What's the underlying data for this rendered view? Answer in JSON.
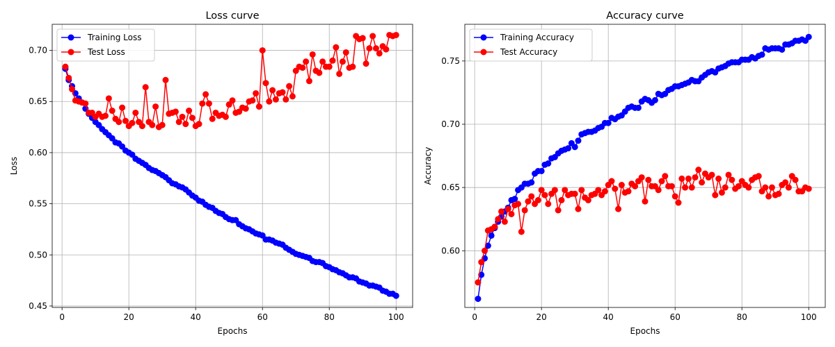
{
  "chart_data": [
    {
      "type": "line",
      "title": "Loss curve",
      "xlabel": "Epochs",
      "ylabel": "Loss",
      "xlim": [
        -2.95,
        104.95
      ],
      "ylim": [
        0.4486,
        0.7255
      ],
      "xticks": [
        0,
        20,
        40,
        60,
        80,
        100
      ],
      "xtick_labels": [
        "0",
        "20",
        "40",
        "60",
        "80",
        "100"
      ],
      "yticks": [
        0.45,
        0.5,
        0.55,
        0.6,
        0.65,
        0.7
      ],
      "ytick_labels": [
        "0.45",
        "0.50",
        "0.55",
        "0.60",
        "0.65",
        "0.70"
      ],
      "grid": true,
      "legend_position": "upper-left",
      "x": [
        1,
        2,
        3,
        4,
        5,
        6,
        7,
        8,
        9,
        10,
        11,
        12,
        13,
        14,
        15,
        16,
        17,
        18,
        19,
        20,
        21,
        22,
        23,
        24,
        25,
        26,
        27,
        28,
        29,
        30,
        31,
        32,
        33,
        34,
        35,
        36,
        37,
        38,
        39,
        40,
        41,
        42,
        43,
        44,
        45,
        46,
        47,
        48,
        49,
        50,
        51,
        52,
        53,
        54,
        55,
        56,
        57,
        58,
        59,
        60,
        61,
        62,
        63,
        64,
        65,
        66,
        67,
        68,
        69,
        70,
        71,
        72,
        73,
        74,
        75,
        76,
        77,
        78,
        79,
        80,
        81,
        82,
        83,
        84,
        85,
        86,
        87,
        88,
        89,
        90,
        91,
        92,
        93,
        94,
        95,
        96,
        97,
        98,
        99,
        100
      ],
      "series": [
        {
          "name": "Training Loss",
          "color": "#0000ff",
          "values": [
            0.682,
            0.671,
            0.665,
            0.658,
            0.653,
            0.649,
            0.643,
            0.638,
            0.634,
            0.63,
            0.627,
            0.623,
            0.62,
            0.617,
            0.614,
            0.61,
            0.609,
            0.606,
            0.602,
            0.6,
            0.598,
            0.594,
            0.592,
            0.59,
            0.588,
            0.585,
            0.583,
            0.582,
            0.58,
            0.578,
            0.576,
            0.573,
            0.57,
            0.569,
            0.567,
            0.566,
            0.564,
            0.561,
            0.558,
            0.556,
            0.553,
            0.552,
            0.549,
            0.547,
            0.546,
            0.543,
            0.541,
            0.54,
            0.537,
            0.535,
            0.534,
            0.534,
            0.53,
            0.528,
            0.526,
            0.525,
            0.523,
            0.521,
            0.52,
            0.519,
            0.515,
            0.515,
            0.514,
            0.512,
            0.511,
            0.51,
            0.507,
            0.505,
            0.503,
            0.501,
            0.5,
            0.499,
            0.498,
            0.497,
            0.494,
            0.493,
            0.493,
            0.492,
            0.489,
            0.488,
            0.486,
            0.485,
            0.483,
            0.482,
            0.48,
            0.478,
            0.478,
            0.477,
            0.474,
            0.473,
            0.472,
            0.47,
            0.47,
            0.469,
            0.468,
            0.465,
            0.464,
            0.462,
            0.462,
            0.46
          ]
        },
        {
          "name": "Test Loss",
          "color": "#ff0000",
          "values": [
            0.684,
            0.673,
            0.662,
            0.651,
            0.65,
            0.649,
            0.648,
            0.639,
            0.639,
            0.635,
            0.638,
            0.635,
            0.636,
            0.653,
            0.641,
            0.633,
            0.63,
            0.644,
            0.631,
            0.626,
            0.629,
            0.639,
            0.63,
            0.626,
            0.664,
            0.63,
            0.627,
            0.645,
            0.625,
            0.627,
            0.671,
            0.638,
            0.639,
            0.64,
            0.63,
            0.635,
            0.628,
            0.641,
            0.634,
            0.626,
            0.628,
            0.648,
            0.657,
            0.648,
            0.633,
            0.639,
            0.636,
            0.637,
            0.635,
            0.647,
            0.651,
            0.639,
            0.64,
            0.644,
            0.643,
            0.65,
            0.651,
            0.658,
            0.645,
            0.7,
            0.668,
            0.65,
            0.661,
            0.652,
            0.658,
            0.659,
            0.652,
            0.665,
            0.655,
            0.68,
            0.684,
            0.683,
            0.689,
            0.67,
            0.696,
            0.68,
            0.678,
            0.689,
            0.684,
            0.684,
            0.69,
            0.703,
            0.677,
            0.689,
            0.698,
            0.683,
            0.684,
            0.714,
            0.711,
            0.712,
            0.687,
            0.702,
            0.714,
            0.702,
            0.697,
            0.704,
            0.701,
            0.715,
            0.714,
            0.715
          ]
        }
      ]
    },
    {
      "type": "line",
      "title": "Accuracy curve",
      "xlabel": "Epochs",
      "ylabel": "Accuracy",
      "xlim": [
        -2.95,
        104.95
      ],
      "ylim": [
        0.5552,
        0.779
      ],
      "xticks": [
        0,
        20,
        40,
        60,
        80,
        100
      ],
      "xtick_labels": [
        "0",
        "20",
        "40",
        "60",
        "80",
        "100"
      ],
      "yticks": [
        0.6,
        0.65,
        0.7,
        0.75
      ],
      "ytick_labels": [
        "0.60",
        "0.65",
        "0.70",
        "0.75"
      ],
      "grid": true,
      "legend_position": "upper-left",
      "x": [
        1,
        2,
        3,
        4,
        5,
        6,
        7,
        8,
        9,
        10,
        11,
        12,
        13,
        14,
        15,
        16,
        17,
        18,
        19,
        20,
        21,
        22,
        23,
        24,
        25,
        26,
        27,
        28,
        29,
        30,
        31,
        32,
        33,
        34,
        35,
        36,
        37,
        38,
        39,
        40,
        41,
        42,
        43,
        44,
        45,
        46,
        47,
        48,
        49,
        50,
        51,
        52,
        53,
        54,
        55,
        56,
        57,
        58,
        59,
        60,
        61,
        62,
        63,
        64,
        65,
        66,
        67,
        68,
        69,
        70,
        71,
        72,
        73,
        74,
        75,
        76,
        77,
        78,
        79,
        80,
        81,
        82,
        83,
        84,
        85,
        86,
        87,
        88,
        89,
        90,
        91,
        92,
        93,
        94,
        95,
        96,
        97,
        98,
        99,
        100
      ],
      "series": [
        {
          "name": "Training Accuracy",
          "color": "#0000ff",
          "values": [
            0.562,
            0.581,
            0.594,
            0.604,
            0.612,
            0.618,
            0.623,
            0.627,
            0.631,
            0.634,
            0.64,
            0.641,
            0.648,
            0.65,
            0.653,
            0.653,
            0.654,
            0.661,
            0.663,
            0.663,
            0.668,
            0.669,
            0.673,
            0.674,
            0.677,
            0.679,
            0.68,
            0.681,
            0.685,
            0.682,
            0.687,
            0.692,
            0.693,
            0.694,
            0.694,
            0.695,
            0.697,
            0.698,
            0.701,
            0.701,
            0.705,
            0.704,
            0.706,
            0.707,
            0.71,
            0.713,
            0.714,
            0.713,
            0.713,
            0.718,
            0.72,
            0.719,
            0.717,
            0.719,
            0.724,
            0.723,
            0.724,
            0.727,
            0.728,
            0.73,
            0.73,
            0.731,
            0.732,
            0.733,
            0.735,
            0.734,
            0.734,
            0.737,
            0.739,
            0.741,
            0.742,
            0.741,
            0.744,
            0.745,
            0.746,
            0.748,
            0.749,
            0.749,
            0.749,
            0.751,
            0.751,
            0.751,
            0.753,
            0.752,
            0.754,
            0.755,
            0.76,
            0.759,
            0.76,
            0.76,
            0.76,
            0.759,
            0.763,
            0.763,
            0.764,
            0.766,
            0.766,
            0.767,
            0.766,
            0.769
          ]
        },
        {
          "name": "Test Accuracy",
          "color": "#ff0000",
          "values": [
            0.575,
            0.591,
            0.6,
            0.616,
            0.617,
            0.619,
            0.625,
            0.631,
            0.623,
            0.633,
            0.629,
            0.636,
            0.637,
            0.615,
            0.632,
            0.639,
            0.643,
            0.637,
            0.64,
            0.648,
            0.644,
            0.637,
            0.645,
            0.648,
            0.632,
            0.64,
            0.648,
            0.644,
            0.645,
            0.645,
            0.633,
            0.648,
            0.642,
            0.64,
            0.644,
            0.645,
            0.648,
            0.644,
            0.647,
            0.652,
            0.655,
            0.649,
            0.633,
            0.652,
            0.646,
            0.647,
            0.653,
            0.651,
            0.655,
            0.658,
            0.639,
            0.656,
            0.651,
            0.651,
            0.648,
            0.655,
            0.659,
            0.651,
            0.651,
            0.643,
            0.638,
            0.657,
            0.65,
            0.657,
            0.65,
            0.658,
            0.664,
            0.654,
            0.661,
            0.658,
            0.66,
            0.644,
            0.657,
            0.646,
            0.65,
            0.66,
            0.656,
            0.649,
            0.651,
            0.655,
            0.652,
            0.65,
            0.656,
            0.658,
            0.659,
            0.647,
            0.65,
            0.643,
            0.65,
            0.644,
            0.645,
            0.652,
            0.654,
            0.65,
            0.659,
            0.656,
            0.647,
            0.647,
            0.65,
            0.649
          ]
        }
      ]
    }
  ]
}
